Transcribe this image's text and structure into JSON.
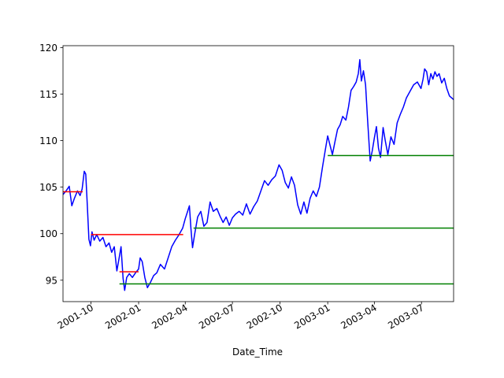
{
  "chart_data": {
    "type": "line",
    "xlabel": "Date_Time",
    "ylabel": "",
    "title": "",
    "xlim": [
      "2001-08-08",
      "2003-09-01"
    ],
    "ylim": [
      92.7,
      120.2
    ],
    "grid": false,
    "x_ticks": [
      {
        "date": "2001-10-01",
        "label": "2001-10"
      },
      {
        "date": "2002-01-01",
        "label": "2002-01"
      },
      {
        "date": "2002-04-01",
        "label": "2002-04"
      },
      {
        "date": "2002-07-01",
        "label": "2002-07"
      },
      {
        "date": "2002-10-01",
        "label": "2002-10"
      },
      {
        "date": "2003-01-01",
        "label": "2003-01"
      },
      {
        "date": "2003-04-01",
        "label": "2003-04"
      },
      {
        "date": "2003-07-01",
        "label": "2003-07"
      }
    ],
    "y_ticks": [
      95,
      100,
      105,
      110,
      115,
      120
    ],
    "series": [
      {
        "color": "#0000ff",
        "points": [
          [
            "2001-08-08",
            104.2
          ],
          [
            "2001-08-14",
            104.6
          ],
          [
            "2001-08-20",
            105.1
          ],
          [
            "2001-08-25",
            103.0
          ],
          [
            "2001-08-30",
            103.8
          ],
          [
            "2001-09-05",
            104.6
          ],
          [
            "2001-09-10",
            104.1
          ],
          [
            "2001-09-14",
            104.8
          ],
          [
            "2001-09-18",
            106.7
          ],
          [
            "2001-09-21",
            106.4
          ],
          [
            "2001-09-24",
            103.0
          ],
          [
            "2001-09-27",
            99.4
          ],
          [
            "2001-09-30",
            98.7
          ],
          [
            "2001-10-03",
            100.2
          ],
          [
            "2001-10-07",
            99.3
          ],
          [
            "2001-10-12",
            99.9
          ],
          [
            "2001-10-18",
            99.2
          ],
          [
            "2001-10-24",
            99.6
          ],
          [
            "2001-10-30",
            98.6
          ],
          [
            "2001-11-05",
            99.0
          ],
          [
            "2001-11-10",
            98.0
          ],
          [
            "2001-11-15",
            98.6
          ],
          [
            "2001-11-20",
            96.0
          ],
          [
            "2001-11-25",
            97.6
          ],
          [
            "2001-11-28",
            98.6
          ],
          [
            "2001-12-02",
            95.2
          ],
          [
            "2001-12-05",
            93.9
          ],
          [
            "2001-12-09",
            95.3
          ],
          [
            "2001-12-14",
            95.7
          ],
          [
            "2001-12-20",
            95.3
          ],
          [
            "2001-12-26",
            95.8
          ],
          [
            "2002-01-01",
            96.2
          ],
          [
            "2002-01-04",
            97.4
          ],
          [
            "2002-01-08",
            97.0
          ],
          [
            "2002-01-13",
            95.3
          ],
          [
            "2002-01-18",
            94.2
          ],
          [
            "2002-01-24",
            94.8
          ],
          [
            "2002-01-30",
            95.5
          ],
          [
            "2002-02-05",
            95.8
          ],
          [
            "2002-02-12",
            96.7
          ],
          [
            "2002-02-20",
            96.2
          ],
          [
            "2002-02-27",
            97.4
          ],
          [
            "2002-03-06",
            98.6
          ],
          [
            "2002-03-13",
            99.3
          ],
          [
            "2002-03-20",
            99.9
          ],
          [
            "2002-03-27",
            100.6
          ],
          [
            "2002-04-01",
            101.6
          ],
          [
            "2002-04-05",
            102.3
          ],
          [
            "2002-04-09",
            103.0
          ],
          [
            "2002-04-12",
            100.5
          ],
          [
            "2002-04-15",
            98.5
          ],
          [
            "2002-04-19",
            99.9
          ],
          [
            "2002-04-25",
            101.8
          ],
          [
            "2002-05-01",
            102.4
          ],
          [
            "2002-05-07",
            100.8
          ],
          [
            "2002-05-13",
            101.2
          ],
          [
            "2002-05-19",
            103.4
          ],
          [
            "2002-05-25",
            102.4
          ],
          [
            "2002-06-01",
            102.7
          ],
          [
            "2002-06-07",
            101.9
          ],
          [
            "2002-06-13",
            101.2
          ],
          [
            "2002-06-19",
            101.8
          ],
          [
            "2002-06-25",
            100.9
          ],
          [
            "2002-07-01",
            101.7
          ],
          [
            "2002-07-07",
            102.1
          ],
          [
            "2002-07-14",
            102.4
          ],
          [
            "2002-07-21",
            102.0
          ],
          [
            "2002-07-28",
            103.2
          ],
          [
            "2002-08-04",
            102.1
          ],
          [
            "2002-08-11",
            102.9
          ],
          [
            "2002-08-18",
            103.5
          ],
          [
            "2002-08-25",
            104.6
          ],
          [
            "2002-09-01",
            105.7
          ],
          [
            "2002-09-08",
            105.2
          ],
          [
            "2002-09-15",
            105.8
          ],
          [
            "2002-09-22",
            106.2
          ],
          [
            "2002-09-29",
            107.4
          ],
          [
            "2002-10-05",
            106.8
          ],
          [
            "2002-10-11",
            105.5
          ],
          [
            "2002-10-17",
            104.9
          ],
          [
            "2002-10-23",
            106.1
          ],
          [
            "2002-10-29",
            105.2
          ],
          [
            "2002-11-04",
            103.1
          ],
          [
            "2002-11-10",
            102.1
          ],
          [
            "2002-11-16",
            103.4
          ],
          [
            "2002-11-22",
            102.2
          ],
          [
            "2002-11-28",
            103.8
          ],
          [
            "2002-12-04",
            104.6
          ],
          [
            "2002-12-10",
            104.0
          ],
          [
            "2002-12-16",
            105.0
          ],
          [
            "2002-12-22",
            107.2
          ],
          [
            "2002-12-27",
            108.9
          ],
          [
            "2003-01-01",
            110.5
          ],
          [
            "2003-01-05",
            109.6
          ],
          [
            "2003-01-10",
            108.5
          ],
          [
            "2003-01-15",
            109.9
          ],
          [
            "2003-01-20",
            111.2
          ],
          [
            "2003-01-25",
            111.7
          ],
          [
            "2003-01-30",
            112.6
          ],
          [
            "2003-02-05",
            112.2
          ],
          [
            "2003-02-10",
            113.6
          ],
          [
            "2003-02-15",
            115.4
          ],
          [
            "2003-02-20",
            115.8
          ],
          [
            "2003-02-25",
            116.3
          ],
          [
            "2003-03-01",
            117.2
          ],
          [
            "2003-03-04",
            118.7
          ],
          [
            "2003-03-07",
            116.4
          ],
          [
            "2003-03-11",
            117.5
          ],
          [
            "2003-03-15",
            116.0
          ],
          [
            "2003-03-19",
            112.2
          ],
          [
            "2003-03-22",
            109.5
          ],
          [
            "2003-03-24",
            107.8
          ],
          [
            "2003-03-28",
            108.9
          ],
          [
            "2003-04-01",
            110.3
          ],
          [
            "2003-04-05",
            111.5
          ],
          [
            "2003-04-09",
            109.2
          ],
          [
            "2003-04-13",
            108.2
          ],
          [
            "2003-04-18",
            111.4
          ],
          [
            "2003-04-22",
            110.0
          ],
          [
            "2003-04-27",
            108.5
          ],
          [
            "2003-05-03",
            110.4
          ],
          [
            "2003-05-09",
            109.6
          ],
          [
            "2003-05-15",
            111.9
          ],
          [
            "2003-05-21",
            112.8
          ],
          [
            "2003-05-27",
            113.6
          ],
          [
            "2003-06-02",
            114.6
          ],
          [
            "2003-06-09",
            115.3
          ],
          [
            "2003-06-16",
            116.0
          ],
          [
            "2003-06-23",
            116.3
          ],
          [
            "2003-06-30",
            115.6
          ],
          [
            "2003-07-04",
            116.6
          ],
          [
            "2003-07-07",
            117.7
          ],
          [
            "2003-07-11",
            117.4
          ],
          [
            "2003-07-15",
            116.0
          ],
          [
            "2003-07-19",
            117.2
          ],
          [
            "2003-07-23",
            116.6
          ],
          [
            "2003-07-27",
            117.4
          ],
          [
            "2003-07-31",
            116.9
          ],
          [
            "2003-08-04",
            117.2
          ],
          [
            "2003-08-09",
            116.2
          ],
          [
            "2003-08-14",
            116.7
          ],
          [
            "2003-08-19",
            115.6
          ],
          [
            "2003-08-24",
            114.8
          ],
          [
            "2003-09-01",
            114.4
          ]
        ]
      }
    ],
    "segments": [
      {
        "color": "#ff0000",
        "y": 104.5,
        "x_start": "2001-08-08",
        "x_end": "2001-09-15"
      },
      {
        "color": "#ff0000",
        "y": 99.9,
        "x_start": "2001-10-01",
        "x_end": "2002-03-28"
      },
      {
        "color": "#ff0000",
        "y": 95.9,
        "x_start": "2001-11-25",
        "x_end": "2002-01-01"
      },
      {
        "color": "#008000",
        "y": 94.6,
        "x_start": "2001-11-25",
        "x_end": "2003-09-01"
      },
      {
        "color": "#008000",
        "y": 100.6,
        "x_start": "2002-04-17",
        "x_end": "2003-09-01"
      },
      {
        "color": "#008000",
        "y": 108.4,
        "x_start": "2003-01-01",
        "x_end": "2003-09-01"
      }
    ]
  }
}
